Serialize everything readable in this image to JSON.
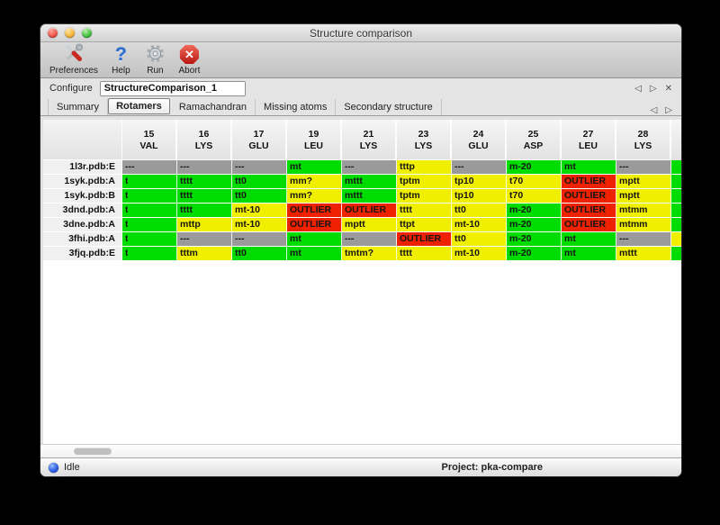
{
  "window": {
    "title": "Structure comparison"
  },
  "toolbar": {
    "items": [
      {
        "label": "Preferences"
      },
      {
        "label": "Help"
      },
      {
        "label": "Run"
      },
      {
        "label": "Abort"
      }
    ]
  },
  "configure": {
    "label": "Configure",
    "value": "StructureComparison_1"
  },
  "tabs": [
    {
      "label": "Summary",
      "selected": false
    },
    {
      "label": "Rotamers",
      "selected": true
    },
    {
      "label": "Ramachandran",
      "selected": false
    },
    {
      "label": "Missing atoms",
      "selected": false
    },
    {
      "label": "Secondary structure",
      "selected": false
    }
  ],
  "icons": {
    "prev": "◁",
    "next": "▷",
    "close": "✕",
    "abort_x": "✕",
    "help_glyph": "?"
  },
  "colors": {
    "green": "#00dc00",
    "yellow": "#f1ef00",
    "red": "#ee2100",
    "gray": "#9a9a9a"
  },
  "table": {
    "columns": [
      {
        "num": "15",
        "res": "VAL"
      },
      {
        "num": "16",
        "res": "LYS"
      },
      {
        "num": "17",
        "res": "GLU"
      },
      {
        "num": "19",
        "res": "LEU"
      },
      {
        "num": "21",
        "res": "LYS"
      },
      {
        "num": "23",
        "res": "LYS"
      },
      {
        "num": "24",
        "res": "GLU"
      },
      {
        "num": "25",
        "res": "ASP"
      },
      {
        "num": "27",
        "res": "LEU"
      },
      {
        "num": "28",
        "res": "LYS"
      }
    ],
    "rows": [
      {
        "label": "1l3r.pdb:E",
        "edge": "green",
        "cells": [
          [
            "---",
            "gray"
          ],
          [
            "---",
            "gray"
          ],
          [
            "---",
            "gray"
          ],
          [
            "mt",
            "green"
          ],
          [
            "---",
            "gray"
          ],
          [
            "tttp",
            "yellow"
          ],
          [
            "---",
            "gray"
          ],
          [
            "m-20",
            "green"
          ],
          [
            "mt",
            "green"
          ],
          [
            "---",
            "gray"
          ]
        ]
      },
      {
        "label": "1syk.pdb:A",
        "edge": "green",
        "cells": [
          [
            "t",
            "green",
            "clip"
          ],
          [
            "tttt",
            "green"
          ],
          [
            "tt0",
            "green"
          ],
          [
            "mm?",
            "yellow"
          ],
          [
            "mttt",
            "green"
          ],
          [
            "tptm",
            "yellow"
          ],
          [
            "tp10",
            "yellow"
          ],
          [
            "t70",
            "yellow"
          ],
          [
            "OUTLIER",
            "red"
          ],
          [
            "mptt",
            "yellow"
          ]
        ]
      },
      {
        "label": "1syk.pdb:B",
        "edge": "green",
        "cells": [
          [
            "t",
            "green",
            "clip"
          ],
          [
            "tttt",
            "green"
          ],
          [
            "tt0",
            "green"
          ],
          [
            "mm?",
            "yellow"
          ],
          [
            "mttt",
            "green"
          ],
          [
            "tptm",
            "yellow"
          ],
          [
            "tp10",
            "yellow"
          ],
          [
            "t70",
            "yellow"
          ],
          [
            "OUTLIER",
            "red"
          ],
          [
            "mptt",
            "yellow"
          ]
        ]
      },
      {
        "label": "3dnd.pdb:A",
        "edge": "green",
        "cells": [
          [
            "t",
            "green",
            "clip"
          ],
          [
            "tttt",
            "green"
          ],
          [
            "mt-10",
            "yellow"
          ],
          [
            "OUTLIER",
            "red"
          ],
          [
            "OUTLIER",
            "red"
          ],
          [
            "tttt",
            "yellow"
          ],
          [
            "tt0",
            "yellow"
          ],
          [
            "m-20",
            "green"
          ],
          [
            "OUTLIER",
            "red"
          ],
          [
            "mtmm",
            "yellow"
          ]
        ]
      },
      {
        "label": "3dne.pdb:A",
        "edge": "green",
        "cells": [
          [
            "t",
            "green",
            "clip"
          ],
          [
            "mttp",
            "yellow"
          ],
          [
            "mt-10",
            "yellow"
          ],
          [
            "OUTLIER",
            "red"
          ],
          [
            "mptt",
            "yellow"
          ],
          [
            "ttpt",
            "yellow"
          ],
          [
            "mt-10",
            "yellow"
          ],
          [
            "m-20",
            "green"
          ],
          [
            "OUTLIER",
            "red"
          ],
          [
            "mtmm",
            "yellow"
          ]
        ]
      },
      {
        "label": "3fhi.pdb:A",
        "edge": "yellow",
        "cells": [
          [
            "t",
            "green",
            "clip"
          ],
          [
            "---",
            "gray"
          ],
          [
            "---",
            "gray"
          ],
          [
            "mt",
            "green"
          ],
          [
            "---",
            "gray"
          ],
          [
            "OUTLIER",
            "red"
          ],
          [
            "tt0",
            "yellow"
          ],
          [
            "m-20",
            "green"
          ],
          [
            "mt",
            "green"
          ],
          [
            "---",
            "gray"
          ]
        ]
      },
      {
        "label": "3fjq.pdb:E",
        "edge": "green",
        "cells": [
          [
            "t",
            "green",
            "clip"
          ],
          [
            "tttm",
            "yellow"
          ],
          [
            "tt0",
            "green"
          ],
          [
            "mt",
            "green"
          ],
          [
            "tmtm?",
            "yellow"
          ],
          [
            "tttt",
            "yellow"
          ],
          [
            "mt-10",
            "yellow"
          ],
          [
            "m-20",
            "green"
          ],
          [
            "mt",
            "green"
          ],
          [
            "mttt",
            "yellow"
          ]
        ]
      }
    ]
  },
  "statusbar": {
    "status": "Idle",
    "project": "Project: pka-compare"
  }
}
